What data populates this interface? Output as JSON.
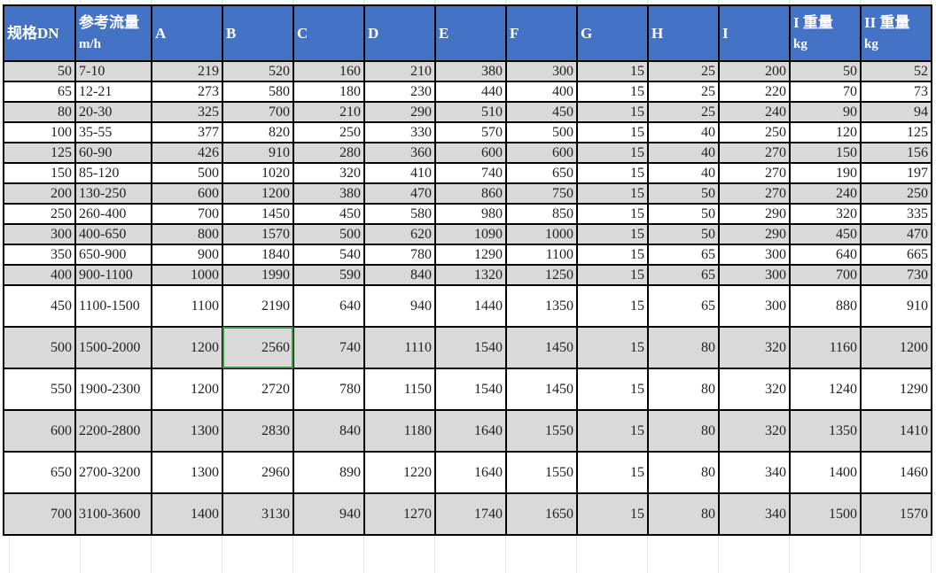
{
  "colors": {
    "header_bg": "#4472C4",
    "header_text": "#FFFFFF",
    "row_alt": "#D9D9D9",
    "selection": "#2E9B3C"
  },
  "headers": [
    {
      "label": "规格DN",
      "unit": ""
    },
    {
      "label": "参考流量",
      "unit": "m/h"
    },
    {
      "label": "A",
      "unit": ""
    },
    {
      "label": "B",
      "unit": ""
    },
    {
      "label": "C",
      "unit": ""
    },
    {
      "label": "D",
      "unit": ""
    },
    {
      "label": "E",
      "unit": ""
    },
    {
      "label": "F",
      "unit": ""
    },
    {
      "label": "G",
      "unit": ""
    },
    {
      "label": "H",
      "unit": ""
    },
    {
      "label": "I",
      "unit": ""
    },
    {
      "label": "I 重量",
      "unit": "kg"
    },
    {
      "label": "II 重量",
      "unit": "kg"
    }
  ],
  "rows": [
    [
      "50",
      "7-10",
      "219",
      "520",
      "160",
      "210",
      "380",
      "300",
      "15",
      "25",
      "200",
      "50",
      "52"
    ],
    [
      "65",
      "12-21",
      "273",
      "580",
      "180",
      "230",
      "440",
      "400",
      "15",
      "25",
      "220",
      "70",
      "73"
    ],
    [
      "80",
      "20-30",
      "325",
      "700",
      "210",
      "290",
      "510",
      "450",
      "15",
      "25",
      "240",
      "90",
      "94"
    ],
    [
      "100",
      "35-55",
      "377",
      "820",
      "250",
      "330",
      "570",
      "500",
      "15",
      "40",
      "250",
      "120",
      "125"
    ],
    [
      "125",
      "60-90",
      "426",
      "910",
      "280",
      "360",
      "600",
      "600",
      "15",
      "40",
      "270",
      "150",
      "156"
    ],
    [
      "150",
      "85-120",
      "500",
      "1020",
      "320",
      "410",
      "740",
      "650",
      "15",
      "40",
      "270",
      "190",
      "197"
    ],
    [
      "200",
      "130-250",
      "600",
      "1200",
      "380",
      "470",
      "860",
      "750",
      "15",
      "50",
      "270",
      "240",
      "250"
    ],
    [
      "250",
      "260-400",
      "700",
      "1450",
      "450",
      "580",
      "980",
      "850",
      "15",
      "50",
      "290",
      "320",
      "335"
    ],
    [
      "300",
      "400-650",
      "800",
      "1570",
      "500",
      "620",
      "1090",
      "1000",
      "15",
      "50",
      "290",
      "450",
      "470"
    ],
    [
      "350",
      "650-900",
      "900",
      "1840",
      "540",
      "780",
      "1290",
      "1100",
      "15",
      "65",
      "300",
      "640",
      "665"
    ],
    [
      "400",
      "900-1100",
      "1000",
      "1990",
      "590",
      "840",
      "1320",
      "1250",
      "15",
      "65",
      "300",
      "700",
      "730"
    ],
    [
      "450",
      "1100-1500",
      "1100",
      "2190",
      "640",
      "940",
      "1440",
      "1350",
      "15",
      "65",
      "300",
      "880",
      "910"
    ],
    [
      "500",
      "1500-2000",
      "1200",
      "2560",
      "740",
      "1110",
      "1540",
      "1450",
      "15",
      "80",
      "320",
      "1160",
      "1200"
    ],
    [
      "550",
      "1900-2300",
      "1200",
      "2720",
      "780",
      "1150",
      "1540",
      "1450",
      "15",
      "80",
      "320",
      "1240",
      "1290"
    ],
    [
      "600",
      "2200-2800",
      "1300",
      "2830",
      "840",
      "1180",
      "1640",
      "1550",
      "15",
      "80",
      "320",
      "1350",
      "1410"
    ],
    [
      "650",
      "2700-3200",
      "1300",
      "2960",
      "890",
      "1220",
      "1640",
      "1550",
      "15",
      "80",
      "340",
      "1400",
      "1460"
    ],
    [
      "700",
      "3100-3600",
      "1400",
      "3130",
      "940",
      "1270",
      "1740",
      "1650",
      "15",
      "80",
      "340",
      "1500",
      "1570"
    ]
  ],
  "selected_cell": {
    "row": 12,
    "col": 3
  }
}
